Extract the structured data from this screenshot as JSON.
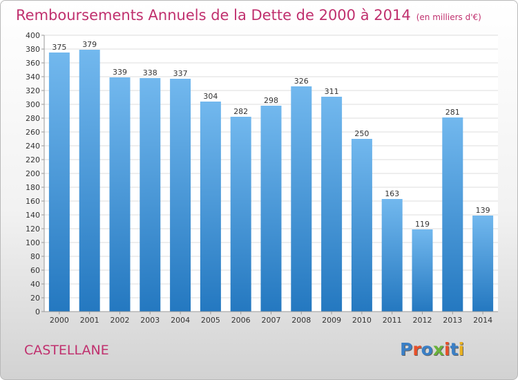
{
  "title": "Remboursements Annuels de la Dette de 2000 à 2014",
  "unit_note": "(en milliers d'€)",
  "commune": "CASTELLANE",
  "logo": {
    "letters": [
      "P",
      "r",
      "o",
      "x",
      "i",
      "t",
      "i"
    ],
    "colors": [
      "#3a7fc6",
      "#e8502a",
      "#3a7fc6",
      "#6ab23a",
      "#e8502a",
      "#3a7fc6",
      "#e8b020"
    ]
  },
  "colors": {
    "bar_top": "#72b8ee",
    "bar_bottom": "#2478c0",
    "accent": "#c0306e"
  },
  "chart_data": {
    "type": "bar",
    "categories": [
      "2000",
      "2001",
      "2002",
      "2003",
      "2004",
      "2005",
      "2006",
      "2007",
      "2008",
      "2009",
      "2010",
      "2011",
      "2012",
      "2013",
      "2014"
    ],
    "values": [
      375,
      379,
      339,
      338,
      337,
      304,
      282,
      298,
      326,
      311,
      250,
      163,
      119,
      281,
      139
    ],
    "title": "Remboursements Annuels de la Dette de 2000 à 2014",
    "xlabel": "",
    "ylabel": "",
    "ylim": [
      0,
      400
    ],
    "yticks": [
      0,
      20,
      40,
      60,
      80,
      100,
      120,
      140,
      160,
      180,
      200,
      220,
      240,
      260,
      280,
      300,
      320,
      340,
      360,
      380,
      400
    ],
    "grid": true,
    "legend": "none"
  }
}
